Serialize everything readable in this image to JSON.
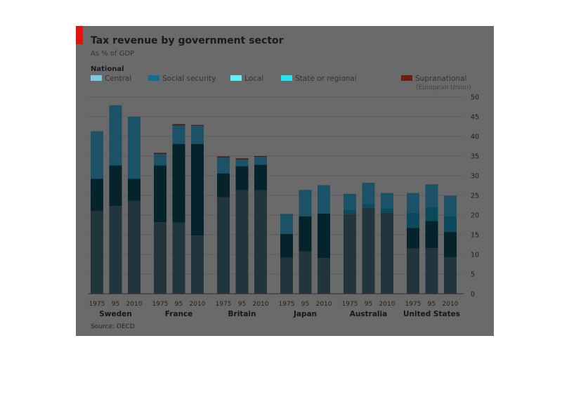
{
  "title": "Tax revenue by government sector",
  "subtitle": "As % of GDP",
  "legend": {
    "heading": "National",
    "items": [
      {
        "label": "Central",
        "color": "#7fc7e8"
      },
      {
        "label": "Social security",
        "color": "#0c6f93"
      },
      {
        "label": "Local",
        "color": "#5ff0f5"
      },
      {
        "label": "State or regional",
        "color": "#21e5f2"
      },
      {
        "label": "Supranational",
        "color": "#6b1f10"
      }
    ],
    "note": "(European Union)"
  },
  "source": "Source: OECD",
  "chart_data": {
    "type": "bar",
    "stacked": true,
    "title": "Tax revenue by government sector",
    "subtitle": "As % of GDP",
    "ylim": [
      0,
      50
    ],
    "yticks": [
      0,
      5,
      10,
      15,
      20,
      25,
      30,
      35,
      40,
      45,
      50
    ],
    "grid": true,
    "groups": [
      {
        "country": "Sweden",
        "years": [
          "1975",
          "95",
          "2010"
        ]
      },
      {
        "country": "France",
        "years": [
          "1975",
          "95",
          "2010"
        ]
      },
      {
        "country": "Britain",
        "years": [
          "1975",
          "95",
          "2010"
        ]
      },
      {
        "country": "Japan",
        "years": [
          "1975",
          "95",
          "2010"
        ]
      },
      {
        "country": "Australia",
        "years": [
          "1975",
          "95",
          "2010"
        ]
      },
      {
        "country": "United States",
        "years": [
          "1975",
          "95",
          "2010"
        ]
      }
    ],
    "series_order": [
      "Central",
      "Local",
      "State or regional",
      "Social security",
      "Supranational"
    ],
    "series_colors": {
      "Central": "#22353c",
      "Local": "#04232b",
      "State or regional": "#0b4a5d",
      "Social security": "#1b5267",
      "Supranational": "#4a1a10"
    },
    "series": [
      {
        "name": "Central",
        "values": [
          21.0,
          22.3,
          23.6,
          18.2,
          18.1,
          14.8,
          24.5,
          26.3,
          26.3,
          9.2,
          10.8,
          9.1,
          20.3,
          21.8,
          20.6,
          11.5,
          11.6,
          9.3
        ]
      },
      {
        "name": "Local",
        "values": [
          8.2,
          10.3,
          5.6,
          14.4,
          20.0,
          23.3,
          6.1,
          6.1,
          6.5,
          6.0,
          8.9,
          11.3,
          0.0,
          0.0,
          0.0,
          5.2,
          6.9,
          6.4
        ]
      },
      {
        "name": "State or regional",
        "values": [
          0.0,
          0.0,
          0.0,
          0.0,
          0.0,
          0.0,
          0.0,
          0.0,
          0.0,
          0.0,
          0.0,
          0.0,
          1.0,
          1.0,
          1.0,
          3.9,
          3.6,
          4.0
        ]
      },
      {
        "name": "Social security",
        "values": [
          12.1,
          15.3,
          15.8,
          2.9,
          4.7,
          4.6,
          4.0,
          1.7,
          2.0,
          5.1,
          6.7,
          7.2,
          4.1,
          5.4,
          4.0,
          5.0,
          5.7,
          5.2
        ]
      },
      {
        "name": "Supranational",
        "values": [
          0.0,
          0.0,
          0.0,
          0.3,
          0.3,
          0.2,
          0.3,
          0.3,
          0.2,
          0.0,
          0.0,
          0.0,
          0.0,
          0.0,
          0.0,
          0.0,
          0.0,
          0.0
        ]
      }
    ]
  }
}
